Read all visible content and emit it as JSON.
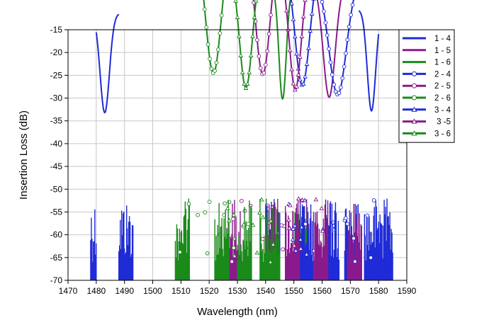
{
  "chart_data": {
    "type": "line",
    "title": "",
    "xlabel": "Wavelength (nm)",
    "ylabel": "Insertion Loss (dB)",
    "xlim": [
      1470,
      1590
    ],
    "ylim": [
      -70,
      -15
    ],
    "xticks": [
      1470,
      1480,
      1490,
      1500,
      1510,
      1520,
      1530,
      1540,
      1550,
      1560,
      1570,
      1580,
      1590
    ],
    "yticks": [
      -15,
      -20,
      -25,
      -30,
      -35,
      -40,
      -45,
      -50,
      -55,
      -60,
      -65,
      -70
    ],
    "grid": true,
    "legend_position": "right",
    "series": [
      {
        "name": "1 - 4",
        "color": "#1f2bd6",
        "marker": "none",
        "peaks": [
          {
            "center": 1483,
            "peak": -33.2,
            "edges": [
              1480,
              1488
            ]
          },
          {
            "center": 1577.5,
            "peak": -32.8,
            "edges": [
              1573,
              1580
            ]
          }
        ]
      },
      {
        "name": "1 - 5",
        "color": "#8a1a8c",
        "marker": "none",
        "peaks": [
          {
            "center": 1562.5,
            "peak": -29.8,
            "edges": [
              1556,
              1569
            ]
          }
        ]
      },
      {
        "name": "1 - 6",
        "color": "#1a8a1a",
        "marker": "none",
        "peaks": [
          {
            "center": 1546,
            "peak": -30.2,
            "edges": [
              1543,
              1550
            ]
          }
        ]
      },
      {
        "name": "2 - 4",
        "color": "#1f2bd6",
        "marker": "circle",
        "peaks": [
          {
            "center": 1565.5,
            "peak": -29.2,
            "edges": [
              1557,
              1575
            ]
          }
        ]
      },
      {
        "name": "2 - 5",
        "color": "#8a1a8c",
        "marker": "circle",
        "peaks": [
          {
            "center": 1539,
            "peak": -24.8,
            "edges": [
              1531,
              1547
            ]
          }
        ]
      },
      {
        "name": "2 - 6",
        "color": "#1a8a1a",
        "marker": "circle",
        "peaks": [
          {
            "center": 1521.5,
            "peak": -24.5,
            "edges": [
              1513,
              1530
            ]
          }
        ]
      },
      {
        "name": "3 - 4",
        "color": "#1f2bd6",
        "marker": "triangle",
        "peaks": [
          {
            "center": 1553,
            "peak": -27.2,
            "edges": [
              1545,
              1561
            ]
          }
        ]
      },
      {
        "name": "3 -5",
        "color": "#8a1a8c",
        "marker": "triangle",
        "peaks": [
          {
            "center": 1550.5,
            "peak": -28.2,
            "edges": [
              1545,
              1557
            ]
          }
        ]
      },
      {
        "name": "3 - 6",
        "color": "#1a8a1a",
        "marker": "triangle",
        "peaks": [
          {
            "center": 1533,
            "peak": -27.8,
            "edges": [
              1527,
              1540
            ]
          }
        ]
      }
    ]
  }
}
